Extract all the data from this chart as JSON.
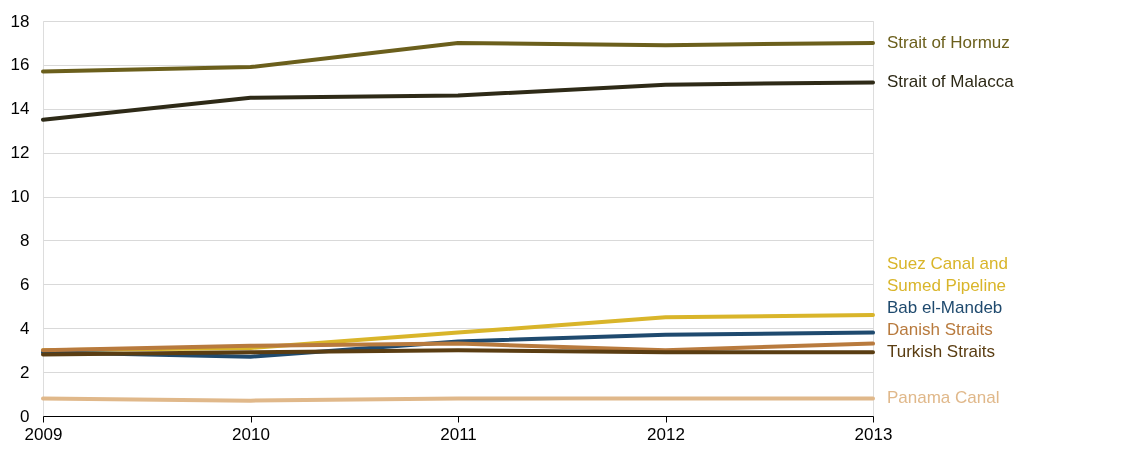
{
  "chart_data": {
    "type": "line",
    "x": [
      2009,
      2010,
      2011,
      2012,
      2013
    ],
    "xlim": [
      2009,
      2013
    ],
    "xticks": [
      2009,
      2010,
      2011,
      2012,
      2013
    ],
    "ylim": [
      0,
      18
    ],
    "yticks": [
      0,
      2,
      4,
      6,
      8,
      10,
      12,
      14,
      16,
      18
    ],
    "grid": "y",
    "legend": "right",
    "line_style": "solid",
    "marker": "none",
    "series": [
      {
        "name": "Strait of Hormuz",
        "color": "#6b5f1c",
        "values": [
          15.7,
          15.9,
          17.0,
          16.9,
          17.0
        ]
      },
      {
        "name": "Strait of Malacca",
        "color": "#2e2a17",
        "values": [
          13.5,
          14.5,
          14.6,
          15.1,
          15.2
        ]
      },
      {
        "name": "Suez Canal and Sumed Pipeline",
        "color": "#d9b52a",
        "values": [
          3.0,
          3.1,
          3.8,
          4.5,
          4.6
        ]
      },
      {
        "name": "Bab el-Mandeb",
        "color": "#1f4a6e",
        "values": [
          2.9,
          2.7,
          3.4,
          3.7,
          3.8
        ]
      },
      {
        "name": "Danish Straits",
        "color": "#b87a3d",
        "values": [
          3.0,
          3.2,
          3.3,
          3.0,
          3.3
        ]
      },
      {
        "name": "Turkish Straits",
        "color": "#5a3d12",
        "values": [
          2.8,
          2.9,
          3.0,
          2.9,
          2.9
        ]
      },
      {
        "name": "Panama Canal",
        "color": "#e0b88a",
        "values": [
          0.8,
          0.7,
          0.8,
          0.8,
          0.8
        ]
      }
    ]
  }
}
